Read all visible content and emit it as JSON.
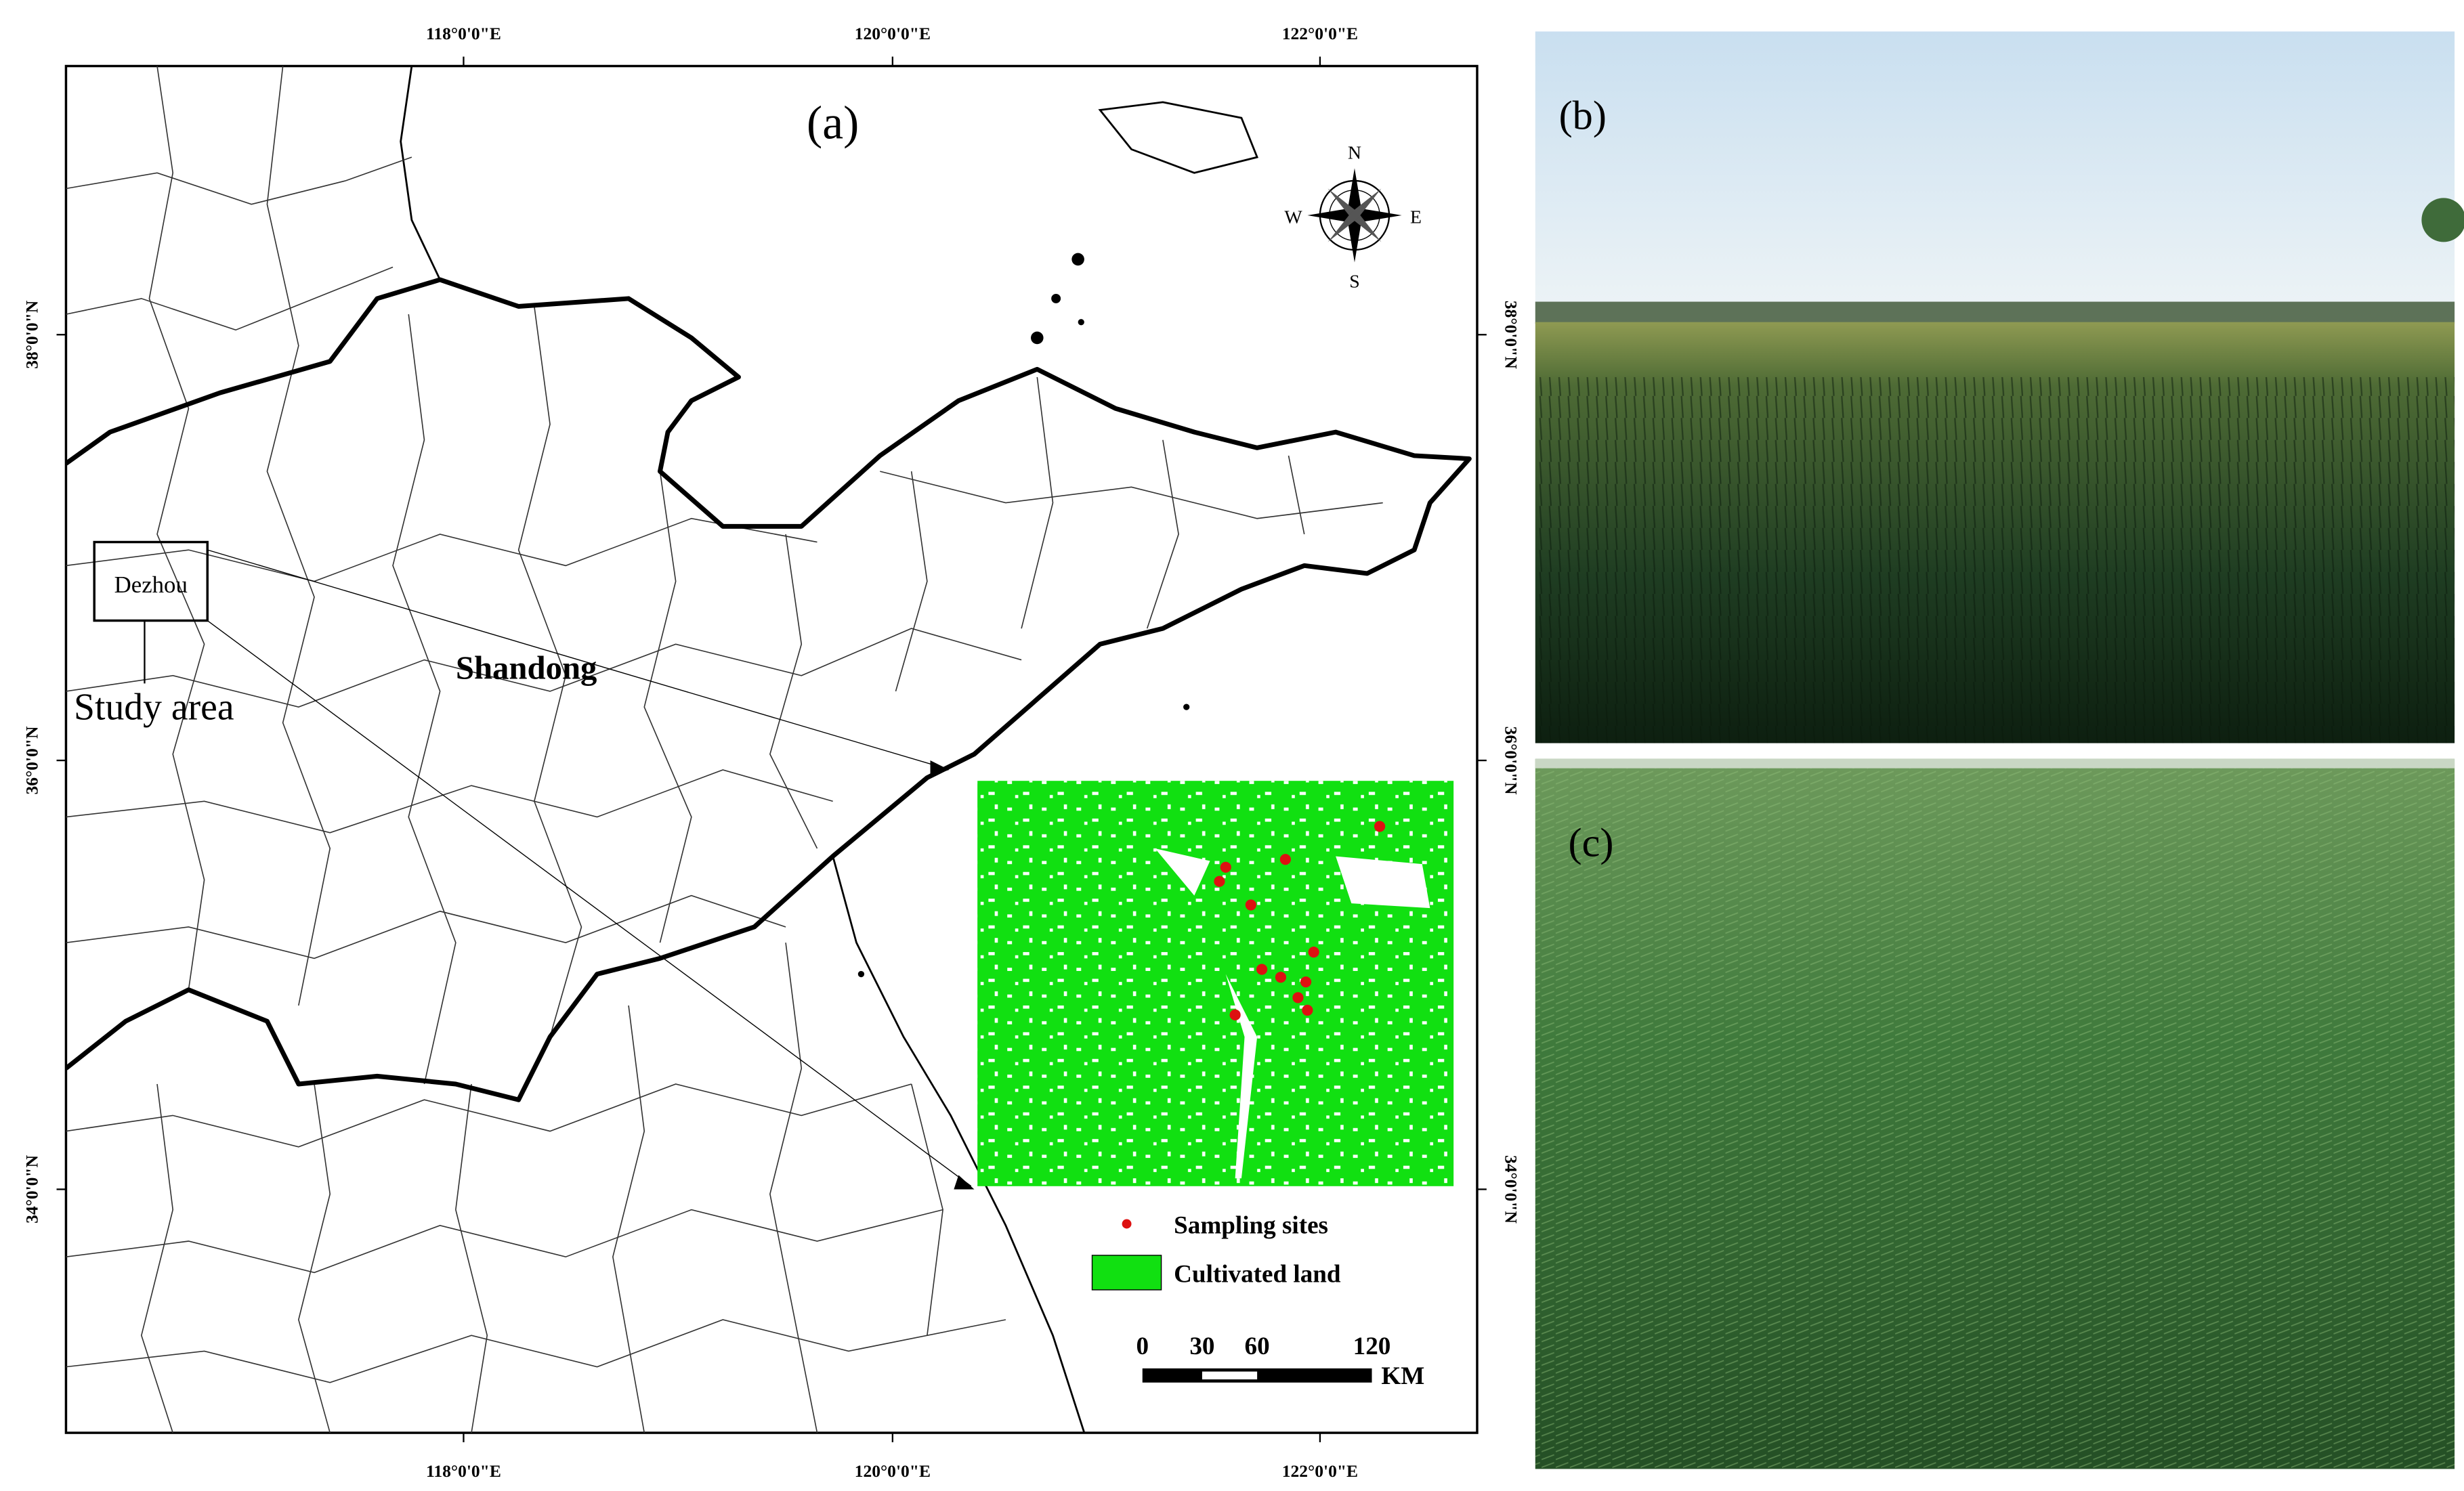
{
  "panels": {
    "a": "(a)",
    "b": "(b)",
    "c": "(c)"
  },
  "map": {
    "lon_labels": [
      "118°0'0\"E",
      "120°0'0\"E",
      "122°0'0\"E"
    ],
    "lat_labels": [
      "38°0'0\"N",
      "36°0'0\"N",
      "34°0'0\"N"
    ],
    "compass": {
      "n": "N",
      "s": "S",
      "e": "E",
      "w": "W"
    },
    "province": "Shandong",
    "city": "Dezhou",
    "study_area": "Study area",
    "legend": [
      "Sampling sites",
      "Cultivated land"
    ],
    "scale_bar": {
      "ticks": [
        0,
        30,
        60,
        120
      ],
      "unit": "KM"
    }
  }
}
